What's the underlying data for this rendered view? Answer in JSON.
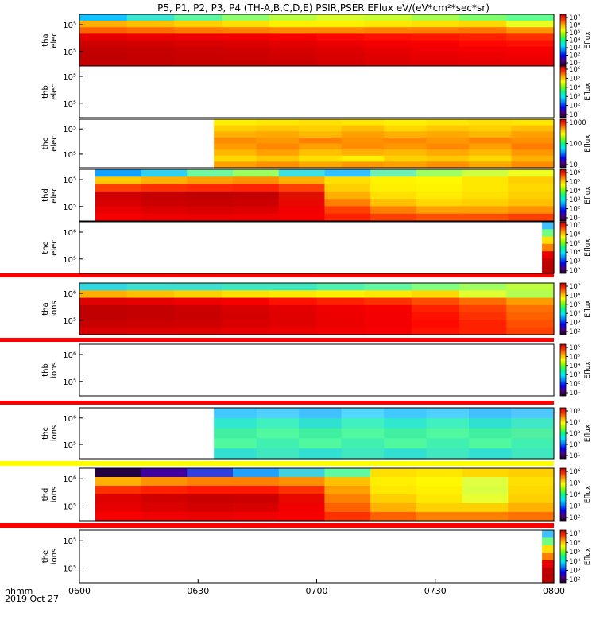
{
  "chart_data": {
    "type": "heatmap",
    "title": "P5, P1, P2, P3, P4 (TH-A,B,C,D,E) PSIR,PSER EFlux eV/(eV*cm²*sec*sr)",
    "x_ticks": [
      "0600",
      "0630",
      "0700",
      "0730",
      "0800"
    ],
    "x_label_line1": "hhmm",
    "x_label_line2": "2019 Oct 27",
    "panels": [
      {
        "probe": "tha",
        "species": "elec",
        "y_ticks": [
          "10⁵",
          "10⁵"
        ],
        "colorbar_ticks": [
          "10⁷",
          "10⁶",
          "10⁵",
          "10⁴",
          "10³",
          "10²",
          "10¹"
        ],
        "colorbar_label": "Eflux",
        "data_start": "0600",
        "data_end": "0800",
        "energy_rows": [
          [
            "#10c2ff",
            "#38e6d0",
            "#5cf6a0",
            "#8cff6c",
            "#b8ff40",
            "#d6ff2c",
            "#c8ff30",
            "#a4ff4a",
            "#7cff6a",
            "#60ff90"
          ],
          [
            "#ffb000",
            "#ffc000",
            "#ffd000",
            "#ffe000",
            "#fff000",
            "#fff000",
            "#ffe800",
            "#ffe000",
            "#ffd800",
            "#e8ff20"
          ],
          [
            "#ff6000",
            "#ff6c00",
            "#ff7800",
            "#ff8000",
            "#ff8800",
            "#ff8800",
            "#ff8000",
            "#ff7c00",
            "#ff7400",
            "#ff9000"
          ],
          [
            "#e80000",
            "#ec0000",
            "#f00000",
            "#f40000",
            "#f80000",
            "#fc0800",
            "#ff1000",
            "#ff1800",
            "#ff2000",
            "#ff3000"
          ],
          [
            "#d00000",
            "#d40000",
            "#d80000",
            "#dc0000",
            "#e40000",
            "#ec0000",
            "#f40000",
            "#f80000",
            "#fc0800",
            "#ff1000"
          ],
          [
            "#c40000",
            "#c80000",
            "#cc0000",
            "#d00000",
            "#d80000",
            "#e00000",
            "#e80000",
            "#f00000",
            "#f40000",
            "#f80000"
          ],
          [
            "#c00000",
            "#c40000",
            "#c80000",
            "#cc0000",
            "#d00000",
            "#d80000",
            "#e00000",
            "#e80000",
            "#ec0000",
            "#f00000"
          ],
          [
            "#c40000",
            "#c40000",
            "#c80000",
            "#c80000",
            "#cc0000",
            "#d40000",
            "#dc0000",
            "#e00000",
            "#e40000",
            "#e80000"
          ]
        ]
      },
      {
        "probe": "thb",
        "species": "elec",
        "y_ticks": [
          "10⁵",
          "10⁵"
        ],
        "colorbar_ticks": [
          "10⁶",
          "10⁵",
          "10⁴",
          "10³",
          "10²",
          "10¹"
        ],
        "colorbar_label": "Eflux",
        "data_start": null,
        "data_end": null,
        "energy_rows": []
      },
      {
        "probe": "thc",
        "species": "elec",
        "y_ticks": [
          "10⁵",
          "10⁵"
        ],
        "colorbar_ticks": [
          "1000",
          "100",
          "10"
        ],
        "colorbar_label": "Eflux",
        "data_start": "0634",
        "data_end": "0800",
        "energy_rows": [
          [
            "#fff000",
            "#ffe800",
            "#ffe000",
            "#ffe800",
            "#fff000",
            "#ffe800",
            "#ffe000",
            "#ffe800"
          ],
          [
            "#ffd000",
            "#ffc800",
            "#ffd000",
            "#ffc000",
            "#ffd800",
            "#ffc800",
            "#ffd000",
            "#ffc000"
          ],
          [
            "#ffb000",
            "#ffa800",
            "#ffb800",
            "#ffa000",
            "#ffb000",
            "#ffa800",
            "#ffb800",
            "#ffa000"
          ],
          [
            "#ff8c00",
            "#ff9800",
            "#ff8000",
            "#ff9000",
            "#ff8800",
            "#ff9800",
            "#ff8400",
            "#ff9000"
          ],
          [
            "#ff9c00",
            "#ff8800",
            "#ffa000",
            "#ff8c00",
            "#ff9800",
            "#ff8800",
            "#ffa000",
            "#ff7c00"
          ],
          [
            "#ffb800",
            "#ffa000",
            "#ffc000",
            "#ffb000",
            "#ffb800",
            "#ffa800",
            "#ffb800",
            "#ff9800"
          ],
          [
            "#ffd800",
            "#ffc800",
            "#ffe000",
            "#fff000",
            "#ffd000",
            "#ffc800",
            "#ffd800",
            "#ffb000"
          ],
          [
            "#ffa000",
            "#ff9000",
            "#ffa800",
            "#ff9800",
            "#ffa000",
            "#ff9000",
            "#ffa800",
            "#ff8c00"
          ]
        ]
      },
      {
        "probe": "thd",
        "species": "elec",
        "y_ticks": [
          "10⁵",
          "10⁵"
        ],
        "colorbar_ticks": [
          "10⁶",
          "10⁵",
          "10⁴",
          "10³",
          "10²",
          "10¹"
        ],
        "colorbar_label": "Eflux",
        "data_start": "0604",
        "data_end": "0800",
        "energy_rows": [
          [
            "#10a0ff",
            "#30d0f0",
            "#70f8a0",
            "#a0ff60",
            "#40e0e0",
            "#30c0ff",
            "#70f0b0",
            "#a0ff60",
            "#d0ff40",
            "#f0ff20"
          ],
          [
            "#ffc800",
            "#ffb000",
            "#ff9c00",
            "#ff9000",
            "#ffb000",
            "#ffe000",
            "#fff400",
            "#fff800",
            "#ffe800",
            "#ffd000"
          ],
          [
            "#ff4000",
            "#ff3000",
            "#ff2800",
            "#ff2400",
            "#ff4000",
            "#ffd000",
            "#fff000",
            "#fff400",
            "#ffe800",
            "#ffd800"
          ],
          [
            "#d00000",
            "#c40000",
            "#c00000",
            "#c40000",
            "#e01000",
            "#ffb000",
            "#ffe000",
            "#ffec00",
            "#ffe000",
            "#ffd000"
          ],
          [
            "#d80000",
            "#cc0000",
            "#c80000",
            "#cc0000",
            "#e80800",
            "#ff8000",
            "#ffc000",
            "#ffd800",
            "#ffd000",
            "#ffc000"
          ],
          [
            "#e80000",
            "#dc0000",
            "#d80000",
            "#dc0000",
            "#f00000",
            "#ff4000",
            "#ff8000",
            "#ffa000",
            "#ffa000",
            "#ff9000"
          ],
          [
            "#f80000",
            "#f00000",
            "#ec0000",
            "#f00000",
            "#f80000",
            "#ff2000",
            "#ff4000",
            "#ff5000",
            "#ff5000",
            "#ff4000"
          ]
        ]
      },
      {
        "probe": "the",
        "species": "elec",
        "y_ticks": [
          "10⁶",
          "10⁵"
        ],
        "colorbar_ticks": [
          "10⁷",
          "10⁶",
          "10⁵",
          "10⁴",
          "10³",
          "10²"
        ],
        "colorbar_label": "Eflux",
        "data_start": "0757",
        "data_end": "0800",
        "energy_rows": [
          [
            "#40c0ff"
          ],
          [
            "#70ff80"
          ],
          [
            "#ffe000"
          ],
          [
            "#ff8000"
          ],
          [
            "#e80000"
          ],
          [
            "#c00000"
          ],
          [
            "#b80000"
          ]
        ]
      },
      {
        "probe": "tha",
        "species": "ions",
        "y_ticks": [
          "10⁶",
          "10⁵"
        ],
        "colorbar_ticks": [
          "10⁷",
          "10⁶",
          "10⁵",
          "10⁴",
          "10³",
          "10²"
        ],
        "colorbar_label": "Eflux",
        "data_start": "0600",
        "data_end": "0800",
        "energy_rows": [
          [
            "#30d8e0",
            "#40e0d0",
            "#40e0d0",
            "#40e8c0",
            "#40e8c0",
            "#50f0b0",
            "#60f8a0",
            "#80ff80",
            "#a0ff60",
            "#c0ff40"
          ],
          [
            "#ffb000",
            "#ffc000",
            "#ffd000",
            "#ffe000",
            "#ffe800",
            "#fff000",
            "#ffe800",
            "#ffd800",
            "#e0ff30",
            "#b0ff50"
          ],
          [
            "#e00000",
            "#e80000",
            "#f00000",
            "#f80000",
            "#ff1000",
            "#ff2000",
            "#ff3000",
            "#ff4c00",
            "#ff6c00",
            "#ff9c00"
          ],
          [
            "#c00000",
            "#c40000",
            "#cc0000",
            "#d80000",
            "#e40000",
            "#f00000",
            "#f80000",
            "#ff2000",
            "#ff4000",
            "#ff7000"
          ],
          [
            "#c00000",
            "#c40000",
            "#c80000",
            "#d40000",
            "#e00000",
            "#ec0000",
            "#f40000",
            "#ff1000",
            "#ff3000",
            "#ff6000"
          ],
          [
            "#c80000",
            "#cc0000",
            "#d00000",
            "#d80000",
            "#e00000",
            "#ec0000",
            "#f40000",
            "#ff0800",
            "#ff2000",
            "#ff5000"
          ],
          [
            "#d80000",
            "#dc0000",
            "#e00000",
            "#e80000",
            "#ec0000",
            "#f40000",
            "#f80000",
            "#ff1000",
            "#ff2000",
            "#ff4000"
          ]
        ]
      },
      {
        "probe": "thb",
        "species": "ions",
        "y_ticks": [
          "10⁶",
          "10⁵"
        ],
        "colorbar_ticks": [
          "10⁵",
          "10⁵",
          "10⁴",
          "10³",
          "10²",
          "10¹"
        ],
        "colorbar_label": "Eflux",
        "data_start": null,
        "data_end": null,
        "energy_rows": []
      },
      {
        "probe": "thc",
        "species": "ions",
        "y_ticks": [
          "10⁶",
          "10⁵"
        ],
        "colorbar_ticks": [
          "10⁵",
          "10⁴",
          "10³",
          "10²",
          "10¹"
        ],
        "colorbar_label": "Eflux",
        "data_start": "0634",
        "data_end": "0800",
        "energy_rows": [
          [
            "#40c8ff",
            "#50d0ff",
            "#40c0ff",
            "#50d8ff",
            "#40c8ff",
            "#50d0ff",
            "#40c0ff",
            "#50c8ff"
          ],
          [
            "#30e8d0",
            "#40f0c0",
            "#30e0d0",
            "#40f0c0",
            "#30e8d0",
            "#40f0c0",
            "#30e0d0",
            "#40e8c8"
          ],
          [
            "#40f0a0",
            "#50f8a0",
            "#40f0a0",
            "#50f8a0",
            "#40f0a0",
            "#50f8a0",
            "#40f0a0",
            "#50f0a0"
          ],
          [
            "#50f8a0",
            "#40f0b0",
            "#50f8a0",
            "#40f0b0",
            "#50f8a0",
            "#40f0b0",
            "#50f8a0",
            "#40f0b0"
          ],
          [
            "#30e0d0",
            "#40e8c0",
            "#30e0d0",
            "#40e8c0",
            "#30e0d0",
            "#40e8c0",
            "#30e0d0",
            "#40e8c0"
          ]
        ]
      },
      {
        "probe": "thd",
        "species": "ions",
        "y_ticks": [
          "10⁶",
          "10⁵"
        ],
        "colorbar_ticks": [
          "10⁶",
          "10⁵",
          "10⁴",
          "10³",
          "10²"
        ],
        "colorbar_label": "Eflux",
        "data_start": "0604",
        "data_end": "0800",
        "energy_rows": [
          [
            "#200040",
            "#4000a0",
            "#3040e0",
            "#20a0ff",
            "#40d0e0",
            "#60f8a0",
            "#ffe000",
            "#ffe800",
            "#ffd800",
            "#ffd000"
          ],
          [
            "#ffb000",
            "#ff9000",
            "#ff8000",
            "#ff8000",
            "#ff9000",
            "#ffc000",
            "#fff000",
            "#fff800",
            "#e0ff40",
            "#ffe000"
          ],
          [
            "#ff3000",
            "#ff2000",
            "#ff1800",
            "#ff1800",
            "#ff3000",
            "#ffa000",
            "#ffe800",
            "#fff000",
            "#d8ff40",
            "#ffd800"
          ],
          [
            "#e00000",
            "#d00000",
            "#c80000",
            "#cc0000",
            "#e80800",
            "#ff8000",
            "#ffd000",
            "#ffe800",
            "#e8ff30",
            "#ffd000"
          ],
          [
            "#e80000",
            "#dc0000",
            "#d40000",
            "#d80000",
            "#f00000",
            "#ff6000",
            "#ffb000",
            "#ffd000",
            "#ffd000",
            "#ffb000"
          ],
          [
            "#f80000",
            "#f00000",
            "#ec0000",
            "#f00000",
            "#f80000",
            "#ff3000",
            "#ff6000",
            "#ff8000",
            "#ff8000",
            "#ff7000"
          ]
        ]
      },
      {
        "probe": "the",
        "species": "ions",
        "y_ticks": [
          "10⁵",
          "10⁵"
        ],
        "colorbar_ticks": [
          "10⁷",
          "10⁶",
          "10⁵",
          "10⁴",
          "10³",
          "10²"
        ],
        "colorbar_label": "Eflux",
        "data_start": "0757",
        "data_end": "0800",
        "energy_rows": [
          [
            "#40c0ff"
          ],
          [
            "#70ff80"
          ],
          [
            "#ffe000"
          ],
          [
            "#ff8000"
          ],
          [
            "#e80000"
          ],
          [
            "#c00000"
          ],
          [
            "#b80000"
          ]
        ]
      }
    ]
  }
}
